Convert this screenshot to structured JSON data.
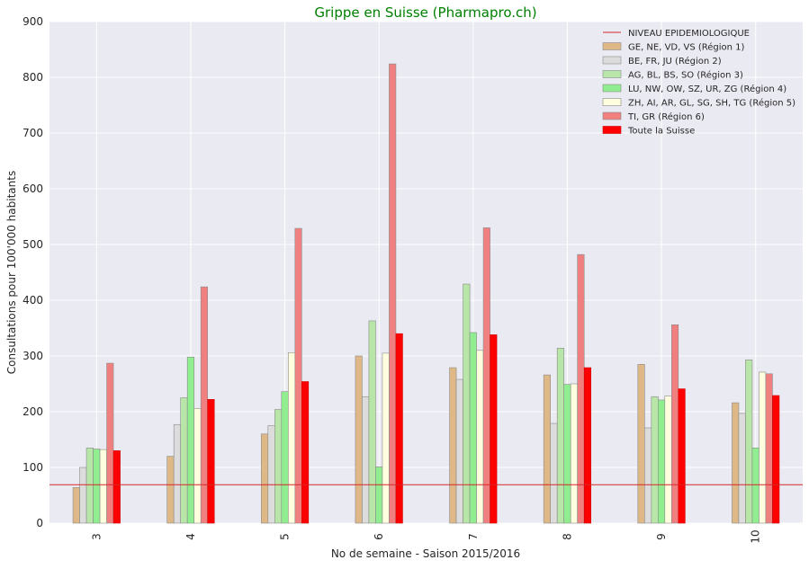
{
  "chart_data": {
    "type": "bar",
    "title": "Grippe en Suisse (Pharmapro.ch)",
    "title_color": "#008000",
    "xlabel": "No de semaine - Saison 2015/2016",
    "ylabel": "Consultations pour 100'000 habitants",
    "categories": [
      "3",
      "4",
      "5",
      "6",
      "7",
      "8",
      "9",
      "10"
    ],
    "ylim": [
      0,
      900
    ],
    "yticks": [
      0,
      100,
      200,
      300,
      400,
      500,
      600,
      700,
      800,
      900
    ],
    "grid": true,
    "legend_position": "top-right",
    "background": "#eaeaf2",
    "threshold": {
      "name": "NIVEAU EPIDEMIOLOGIQUE",
      "value": 69,
      "color": "#d62728"
    },
    "series": [
      {
        "name": "GE, NE, VD, VS (Région 1)",
        "color": "#deb887",
        "values": [
          64,
          120,
          160,
          300,
          279,
          266,
          285,
          216
        ]
      },
      {
        "name": "BE, FR, JU (Région 2)",
        "color": "#dcdcdc",
        "values": [
          100,
          177,
          175,
          227,
          258,
          179,
          171,
          197
        ]
      },
      {
        "name": "AG, BL, BS, SO (Région 3)",
        "color": "#b8e6a8",
        "values": [
          135,
          225,
          204,
          363,
          429,
          314,
          227,
          293
        ]
      },
      {
        "name": "LU, NW, OW, SZ, UR, ZG (Région 4)",
        "color": "#90ee90",
        "values": [
          133,
          298,
          236,
          101,
          342,
          249,
          221,
          135
        ]
      },
      {
        "name": "ZH, AI, AR, GL, SG, SH, TG (Région 5)",
        "color": "#ffffe0",
        "values": [
          132,
          206,
          306,
          305,
          310,
          250,
          228,
          271
        ]
      },
      {
        "name": "TI, GR (Région 6)",
        "color": "#f08080",
        "values": [
          287,
          424,
          529,
          824,
          530,
          482,
          356,
          268
        ]
      },
      {
        "name": "Toute la Suisse",
        "color": "#ff0000",
        "values": [
          130,
          222,
          254,
          340,
          338,
          279,
          241,
          229
        ]
      }
    ]
  }
}
